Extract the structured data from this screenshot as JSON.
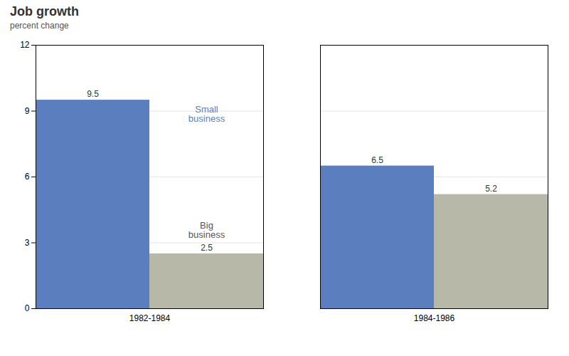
{
  "chart_data": {
    "type": "bar",
    "title": "Job growth",
    "y_label": "percent change",
    "categories": [
      "1982-1984",
      "1984-1986"
    ],
    "series": [
      {
        "name": "Small\nbusiness",
        "color": "#5b7fbe",
        "values": [
          9.5,
          6.5
        ]
      },
      {
        "name": "Big\nbusiness",
        "color": "#b8b8a8",
        "values": [
          2.5,
          5.2
        ]
      }
    ],
    "ylim": [
      0,
      12
    ],
    "yticks": [
      0,
      3,
      6,
      9,
      12
    ],
    "grid": true,
    "data_labels": true
  }
}
